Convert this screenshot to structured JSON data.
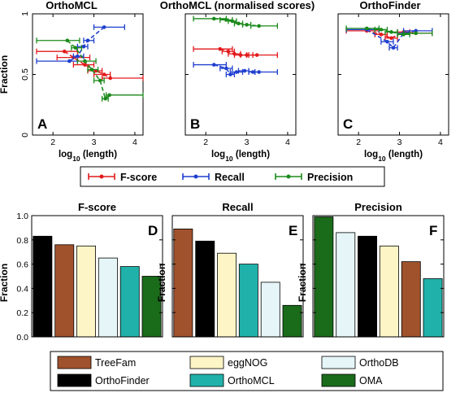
{
  "colors": {
    "F-score": "#e31a1c",
    "Recall": "#1f3fcf",
    "Precision": "#1a8a1a",
    "TreeFam": "#a0522d",
    "OrthoFinder": "#000000",
    "eggNOG": "#fdf5c6",
    "OrthoMCL": "#20b2aa",
    "OrthoDB": "#e6f6f8",
    "OMA": "#1a6b1a"
  },
  "chart_data": [
    {
      "type": "scatter",
      "id": "A",
      "panel_label": "A",
      "title": "OrthoMCL",
      "xlabel": "log10 (length)",
      "ylabel": "Fraction",
      "xlim": [
        1.5,
        4.2
      ],
      "ylim": [
        0,
        1
      ],
      "xticks": [
        "2",
        "3",
        "4"
      ],
      "yticks": [
        "0",
        "0.5",
        "1"
      ],
      "series": [
        {
          "name": "F-score",
          "points": [
            {
              "x": 2.28,
              "y": 0.69,
              "xlo": 1.6,
              "xhi": 2.6
            },
            {
              "x": 2.5,
              "y": 0.64,
              "xlo": 2.1,
              "xhi": 2.9
            },
            {
              "x": 2.78,
              "y": 0.58,
              "xlo": 2.5,
              "xhi": 3.0
            },
            {
              "x": 3.05,
              "y": 0.53,
              "xlo": 2.85,
              "xhi": 3.2
            },
            {
              "x": 3.25,
              "y": 0.5,
              "xlo": 3.0,
              "xhi": 3.4
            },
            {
              "x": 3.4,
              "y": 0.47,
              "xlo": 3.2,
              "xhi": 4.2
            }
          ]
        },
        {
          "name": "Recall",
          "points": [
            {
              "x": 2.4,
              "y": 0.61,
              "xlo": 1.6,
              "xhi": 2.6
            },
            {
              "x": 2.6,
              "y": 0.65,
              "xlo": 2.5,
              "xhi": 2.75
            },
            {
              "x": 2.75,
              "y": 0.73,
              "xlo": 2.6,
              "xhi": 2.85
            },
            {
              "x": 2.85,
              "y": 0.78,
              "xlo": 2.75,
              "xhi": 3.0
            },
            {
              "x": 3.25,
              "y": 0.89,
              "xlo": 3.0,
              "xhi": 3.75
            }
          ]
        },
        {
          "name": "Precision",
          "points": [
            {
              "x": 2.35,
              "y": 0.78,
              "xlo": 1.6,
              "xhi": 2.65
            },
            {
              "x": 2.55,
              "y": 0.72,
              "xlo": 2.45,
              "xhi": 2.7
            },
            {
              "x": 2.78,
              "y": 0.61,
              "xlo": 2.6,
              "xhi": 3.05
            },
            {
              "x": 2.95,
              "y": 0.54,
              "xlo": 2.85,
              "xhi": 3.1
            },
            {
              "x": 3.15,
              "y": 0.45,
              "xlo": 3.0,
              "xhi": 3.25
            },
            {
              "x": 3.28,
              "y": 0.3,
              "xlo": 3.2,
              "xhi": 3.35
            },
            {
              "x": 3.38,
              "y": 0.33,
              "xlo": 3.3,
              "xhi": 4.2
            }
          ]
        }
      ]
    },
    {
      "type": "scatter",
      "id": "B",
      "panel_label": "B",
      "title": "OrthoMCL (normalised scores)",
      "xlabel": "log10 (length)",
      "ylabel": "",
      "xlim": [
        1.5,
        4.2
      ],
      "ylim": [
        0,
        1
      ],
      "xticks": [
        "2",
        "3",
        "4"
      ],
      "yticks": [],
      "series": [
        {
          "name": "F-score",
          "points": [
            {
              "x": 2.35,
              "y": 0.71,
              "xlo": 1.7,
              "xhi": 2.65
            },
            {
              "x": 2.55,
              "y": 0.69,
              "xlo": 2.4,
              "xhi": 2.7
            },
            {
              "x": 2.7,
              "y": 0.67,
              "xlo": 2.55,
              "xhi": 2.85
            },
            {
              "x": 2.85,
              "y": 0.66,
              "xlo": 2.7,
              "xhi": 3.0
            },
            {
              "x": 3.0,
              "y": 0.66,
              "xlo": 2.85,
              "xhi": 3.15
            },
            {
              "x": 3.25,
              "y": 0.66,
              "xlo": 3.05,
              "xhi": 3.75
            }
          ]
        },
        {
          "name": "Recall",
          "points": [
            {
              "x": 2.2,
              "y": 0.58,
              "xlo": 1.7,
              "xhi": 2.5
            },
            {
              "x": 2.5,
              "y": 0.55,
              "xlo": 2.35,
              "xhi": 2.65
            },
            {
              "x": 2.6,
              "y": 0.5,
              "xlo": 2.5,
              "xhi": 2.7
            },
            {
              "x": 2.75,
              "y": 0.52,
              "xlo": 2.6,
              "xhi": 2.9
            },
            {
              "x": 2.95,
              "y": 0.53,
              "xlo": 2.8,
              "xhi": 3.05
            },
            {
              "x": 3.15,
              "y": 0.52,
              "xlo": 3.05,
              "xhi": 3.2
            },
            {
              "x": 3.3,
              "y": 0.52,
              "xlo": 3.2,
              "xhi": 3.75
            }
          ]
        },
        {
          "name": "Precision",
          "points": [
            {
              "x": 2.2,
              "y": 0.96,
              "xlo": 1.7,
              "xhi": 2.5
            },
            {
              "x": 2.5,
              "y": 0.95,
              "xlo": 2.35,
              "xhi": 2.65
            },
            {
              "x": 2.65,
              "y": 0.94,
              "xlo": 2.55,
              "xhi": 2.75
            },
            {
              "x": 2.8,
              "y": 0.92,
              "xlo": 2.7,
              "xhi": 2.9
            },
            {
              "x": 3.0,
              "y": 0.91,
              "xlo": 2.9,
              "xhi": 3.1
            },
            {
              "x": 3.3,
              "y": 0.9,
              "xlo": 3.1,
              "xhi": 3.75
            }
          ]
        }
      ]
    },
    {
      "type": "scatter",
      "id": "C",
      "panel_label": "C",
      "title": "OrthoFinder",
      "xlabel": "log10 (length)",
      "ylabel": "",
      "xlim": [
        1.5,
        4.2
      ],
      "ylim": [
        0,
        1
      ],
      "xticks": [
        "2",
        "3",
        "4"
      ],
      "yticks": [],
      "series": [
        {
          "name": "F-score",
          "points": [
            {
              "x": 2.2,
              "y": 0.86,
              "xlo": 1.7,
              "xhi": 2.5
            },
            {
              "x": 2.55,
              "y": 0.83,
              "xlo": 2.4,
              "xhi": 2.7
            },
            {
              "x": 2.8,
              "y": 0.8,
              "xlo": 2.65,
              "xhi": 2.95
            },
            {
              "x": 3.1,
              "y": 0.85,
              "xlo": 2.95,
              "xhi": 3.25
            },
            {
              "x": 3.4,
              "y": 0.84,
              "xlo": 3.1,
              "xhi": 3.8
            }
          ]
        },
        {
          "name": "Recall",
          "points": [
            {
              "x": 2.2,
              "y": 0.87,
              "xlo": 1.7,
              "xhi": 2.5
            },
            {
              "x": 2.7,
              "y": 0.77,
              "xlo": 2.55,
              "xhi": 2.85
            },
            {
              "x": 2.85,
              "y": 0.72,
              "xlo": 2.75,
              "xhi": 2.95
            },
            {
              "x": 3.1,
              "y": 0.84,
              "xlo": 2.95,
              "xhi": 3.25
            },
            {
              "x": 3.4,
              "y": 0.86,
              "xlo": 3.1,
              "xhi": 3.8
            }
          ]
        },
        {
          "name": "Precision",
          "points": [
            {
              "x": 2.2,
              "y": 0.88,
              "xlo": 1.7,
              "xhi": 2.5
            },
            {
              "x": 2.55,
              "y": 0.87,
              "xlo": 2.4,
              "xhi": 2.7
            },
            {
              "x": 2.8,
              "y": 0.85,
              "xlo": 2.65,
              "xhi": 2.95
            },
            {
              "x": 3.1,
              "y": 0.83,
              "xlo": 2.95,
              "xhi": 3.25
            },
            {
              "x": 3.4,
              "y": 0.84,
              "xlo": 3.1,
              "xhi": 3.8
            }
          ]
        }
      ]
    },
    {
      "type": "bar",
      "id": "D",
      "panel_label": "D",
      "title": "F-score",
      "ylabel": "Fraction",
      "ylim": [
        0,
        1
      ],
      "yticks": [
        "0.0",
        "0.2",
        "0.4",
        "0.6",
        "0.8",
        "1.0"
      ],
      "categories": [
        "OrthoFinder",
        "TreeFam",
        "eggNOG",
        "OrthoDB",
        "OrthoMCL",
        "OMA"
      ],
      "values": [
        0.83,
        0.76,
        0.75,
        0.65,
        0.58,
        0.5
      ]
    },
    {
      "type": "bar",
      "id": "E",
      "panel_label": "E",
      "title": "Recall",
      "ylabel": "Fraction",
      "ylim": [
        0,
        1
      ],
      "yticks": [],
      "categories": [
        "TreeFam",
        "OrthoFinder",
        "eggNOG",
        "OrthoMCL",
        "OrthoDB",
        "OMA"
      ],
      "values": [
        0.89,
        0.79,
        0.69,
        0.6,
        0.45,
        0.26
      ]
    },
    {
      "type": "bar",
      "id": "F",
      "panel_label": "F",
      "title": "Precision",
      "ylabel": "Fraction",
      "ylim": [
        0,
        1
      ],
      "yticks": [],
      "categories": [
        "OMA",
        "OrthoDB",
        "OrthoFinder",
        "eggNOG",
        "TreeFam",
        "OrthoMCL"
      ],
      "values": [
        0.99,
        0.86,
        0.83,
        0.75,
        0.62,
        0.48
      ]
    }
  ],
  "legends": {
    "series": [
      "F-score",
      "Recall",
      "Precision"
    ],
    "methods": [
      "TreeFam",
      "eggNOG",
      "OrthoDB",
      "OrthoFinder",
      "OrthoMCL",
      "OMA"
    ]
  }
}
